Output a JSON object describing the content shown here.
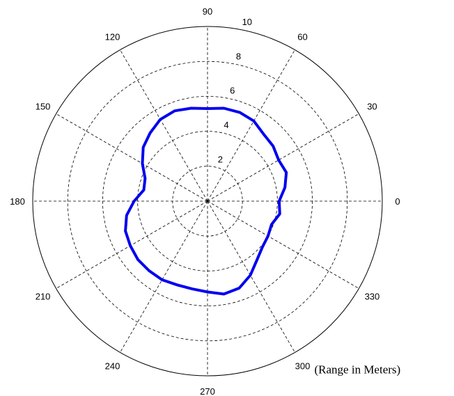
{
  "chart_data": {
    "type": "line",
    "subtype": "polar",
    "title": "",
    "annotation": "(Range in Meters)",
    "angle_unit": "degrees",
    "angle_zero": "right",
    "angle_direction": "counterclockwise",
    "rlim": [
      0,
      10
    ],
    "grid": true,
    "angle_ticks": [
      {
        "value": 0,
        "label": "0"
      },
      {
        "value": 30,
        "label": "30"
      },
      {
        "value": 60,
        "label": "60"
      },
      {
        "value": 90,
        "label": "90"
      },
      {
        "value": 120,
        "label": "120"
      },
      {
        "value": 150,
        "label": "150"
      },
      {
        "value": 180,
        "label": "180"
      },
      {
        "value": 210,
        "label": "210"
      },
      {
        "value": 240,
        "label": "240"
      },
      {
        "value": 270,
        "label": "270"
      },
      {
        "value": 300,
        "label": "300"
      },
      {
        "value": 330,
        "label": "330"
      }
    ],
    "radial_ticks": [
      {
        "value": 2,
        "label": "2"
      },
      {
        "value": 4,
        "label": "4"
      },
      {
        "value": 6,
        "label": "6"
      },
      {
        "value": 8,
        "label": "8"
      },
      {
        "value": 10,
        "label": "10"
      }
    ],
    "series": [
      {
        "color": "#0000ee",
        "theta": [
          0,
          10,
          20,
          30,
          40,
          50,
          60,
          70,
          80,
          90,
          100,
          110,
          120,
          130,
          140,
          150,
          160,
          170,
          180,
          190,
          200,
          210,
          220,
          230,
          240,
          250,
          260,
          270,
          280,
          290,
          300,
          310,
          320,
          330,
          340,
          350,
          360
        ],
        "r": [
          4.1,
          4.5,
          4.8,
          4.7,
          4.9,
          5.0,
          5.3,
          5.4,
          5.4,
          5.3,
          5.4,
          5.5,
          5.4,
          5.1,
          4.8,
          4.3,
          3.8,
          3.7,
          4.2,
          4.7,
          5.0,
          5.1,
          5.2,
          5.2,
          5.2,
          5.1,
          5.1,
          5.2,
          5.4,
          5.3,
          4.9,
          4.4,
          4.1,
          4.0,
          3.9,
          4.2,
          4.1
        ]
      }
    ]
  }
}
